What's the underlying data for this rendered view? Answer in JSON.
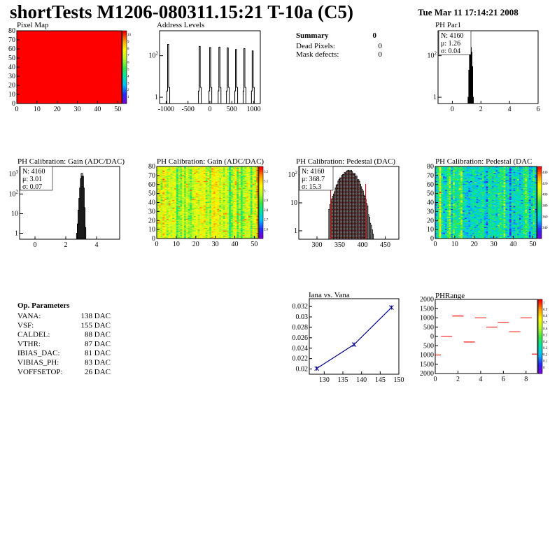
{
  "header": {
    "title": "shortTests M1206-080311.15:21 T-10a (C5)",
    "date": "Tue Mar 11 17:14:21 2008"
  },
  "summary": {
    "title": "Summary",
    "value": "0",
    "rows": [
      {
        "label": "Dead Pixels:",
        "value": "0"
      },
      {
        "label": "Mask defects:",
        "value": "0"
      }
    ]
  },
  "op_params": {
    "title": "Op. Parameters",
    "rows": [
      {
        "label": "VANA:",
        "value": "138 DAC"
      },
      {
        "label": "VSF:",
        "value": "155 DAC"
      },
      {
        "label": "CALDEL:",
        "value": "88 DAC"
      },
      {
        "label": "VTHR:",
        "value": "87 DAC"
      },
      {
        "label": "IBIAS_DAC:",
        "value": "81 DAC"
      },
      {
        "label": "VIBIAS_PH:",
        "value": "83 DAC"
      },
      {
        "label": "VOFFSETOP:",
        "value": "26 DAC"
      }
    ]
  },
  "colors": {
    "red": "#ff0000",
    "blue": "#00008b",
    "pedestal_red": "#dd0000"
  },
  "chart_data": [
    {
      "id": "pixel-map",
      "type": "heatmap",
      "title": "Pixel Map",
      "xlim": [
        0,
        52
      ],
      "ylim": [
        0,
        80
      ],
      "xticks": [
        "0",
        "10",
        "20",
        "30",
        "40",
        "50"
      ],
      "yticks": [
        "0",
        "10",
        "20",
        "30",
        "40",
        "50",
        "60",
        "70",
        "80"
      ],
      "fill": "uniform-max",
      "zticks": [
        "1",
        "2",
        "3",
        "4",
        "5",
        "6",
        "7",
        "8",
        "9",
        "10"
      ]
    },
    {
      "id": "address-levels",
      "type": "bar",
      "title": "Address Levels",
      "yscale": "log",
      "xlim": [
        -1150,
        1150
      ],
      "xticks": [
        "-1000",
        "-500",
        "0",
        "500",
        "1000"
      ],
      "yticks": [
        "1",
        "10^2"
      ],
      "peaks": [
        -950,
        -230,
        10,
        220,
        410,
        600,
        790,
        980
      ],
      "peak_heights": [
        350,
        280,
        250,
        260,
        240,
        200,
        220,
        170
      ]
    },
    {
      "id": "ph-par1",
      "type": "bar",
      "title": "PH Par1",
      "yscale": "log",
      "xlim": [
        -1,
        6
      ],
      "xticks": [
        "0",
        "2",
        "4",
        "6"
      ],
      "yticks": [
        "1",
        "10^2"
      ],
      "stats": {
        "N": "4160",
        "mean": "1.26",
        "sigma": "0.04"
      }
    },
    {
      "id": "gain-1d",
      "type": "bar",
      "title": "PH Calibration: Gain (ADC/DAC)",
      "yscale": "log",
      "xlim": [
        -1,
        5.5
      ],
      "xticks": [
        "0",
        "2",
        "4"
      ],
      "yticks": [
        "1",
        "10",
        "10^2",
        "10^3"
      ],
      "stats": {
        "N": "4160",
        "mean": "3.01",
        "sigma": "0.07"
      }
    },
    {
      "id": "gain-2d",
      "type": "heatmap",
      "title": "PH Calibration: Gain (ADC/DAC)",
      "xlim": [
        0,
        52
      ],
      "ylim": [
        0,
        80
      ],
      "xticks": [
        "0",
        "10",
        "20",
        "30",
        "40",
        "50"
      ],
      "yticks": [
        "0",
        "10",
        "20",
        "30",
        "40",
        "50",
        "60",
        "70",
        "80"
      ],
      "zticks": [
        "2.6",
        "2.7",
        "2.8",
        "2.9",
        "3",
        "3.1",
        "3.2"
      ]
    },
    {
      "id": "pedestal-1d",
      "type": "bar",
      "title": "PH Calibration: Pedestal (DAC)",
      "yscale": "log",
      "xlim": [
        260,
        480
      ],
      "xticks": [
        "300",
        "350",
        "400",
        "450"
      ],
      "yticks": [
        "1",
        "10",
        "10^2"
      ],
      "stats": {
        "N": "4160",
        "mean": "368.7",
        "sigma": "15.3"
      },
      "cut_lines": [
        330,
        407
      ]
    },
    {
      "id": "pedestal-2d",
      "type": "heatmap",
      "title": "PH Calibration: Pedestal (DAC",
      "xlim": [
        0,
        52
      ],
      "ylim": [
        0,
        80
      ],
      "xticks": [
        "0",
        "10",
        "20",
        "30",
        "40",
        "50"
      ],
      "yticks": [
        "0",
        "10",
        "20",
        "30",
        "40",
        "50",
        "60",
        "70",
        "80"
      ],
      "zticks": [
        "340",
        "360",
        "380",
        "400",
        "420",
        "440"
      ]
    },
    {
      "id": "iana-vana",
      "type": "line",
      "title": "Iana vs. Vana",
      "x": [
        128,
        138,
        148
      ],
      "y": [
        0.0201,
        0.0247,
        0.0318
      ],
      "xlim": [
        126,
        150
      ],
      "ylim": [
        0.019,
        0.0335
      ],
      "xticks": [
        "130",
        "135",
        "140",
        "145",
        "150"
      ],
      "yticks": [
        "0.02",
        "0.022",
        "0.024",
        "0.026",
        "0.028",
        "0.03",
        "0.032"
      ]
    },
    {
      "id": "ph-range",
      "type": "scatter",
      "title": "PHRange",
      "x": [
        0,
        1,
        2,
        3,
        4,
        5,
        6,
        7,
        8,
        9
      ],
      "y": [
        -1000,
        0,
        1100,
        -300,
        1000,
        500,
        750,
        250,
        1000,
        -950
      ],
      "xlim": [
        0,
        9
      ],
      "ylim": [
        -2000,
        2000
      ],
      "xticks": [
        "0",
        "2",
        "4",
        "6",
        "8"
      ],
      "yticks": [
        "2000",
        "1500",
        "1000",
        "500",
        "0",
        "500",
        "1000",
        "1500",
        "2000"
      ],
      "zticks": [
        "0",
        "0.1",
        "0.2",
        "0.3",
        "0.4",
        "0.5",
        "0.6",
        "0.7",
        "0.8",
        "0.9",
        "1"
      ]
    }
  ]
}
